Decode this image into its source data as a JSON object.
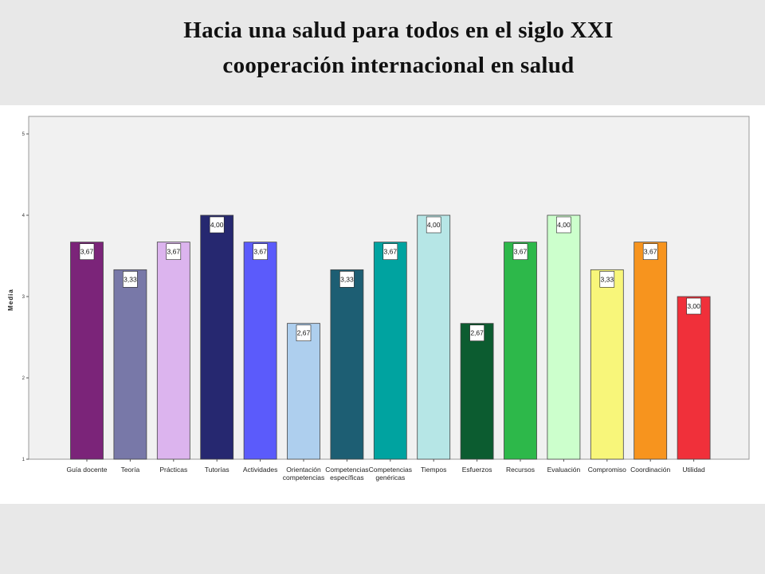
{
  "header": {
    "title_line1": "Hacia una salud para todos en el siglo XXI",
    "title_line2": "cooperación internacional en salud"
  },
  "chart_data": {
    "type": "bar",
    "ylabel": "Media",
    "ylim": [
      1,
      5
    ],
    "yticks": [
      "1",
      "2",
      "3",
      "4",
      "5"
    ],
    "categories": [
      "Guía docente",
      "Teoría",
      "Prácticas",
      "Tutorías",
      "Actividades",
      "Orientación competencias",
      "Competencias específicas",
      "Competencias genéricas",
      "Tiempos",
      "Esfuerzos",
      "Recursos",
      "Evaluación",
      "Compromiso",
      "Coordinación",
      "Utilidad"
    ],
    "category_lines": [
      [
        "Guía docente"
      ],
      [
        "Teoría"
      ],
      [
        "Prácticas"
      ],
      [
        "Tutorías"
      ],
      [
        "Actividades"
      ],
      [
        "Orientación",
        "competencias"
      ],
      [
        "Competencias",
        "específicas"
      ],
      [
        "Competencias",
        "genéricas"
      ],
      [
        "Tiempos"
      ],
      [
        "Esfuerzos"
      ],
      [
        "Recursos"
      ],
      [
        "Evaluación"
      ],
      [
        "Compromiso"
      ],
      [
        "Coordinación"
      ],
      [
        "Utilidad"
      ]
    ],
    "values": [
      3.67,
      3.33,
      3.67,
      4.0,
      3.67,
      2.67,
      3.33,
      3.67,
      4.0,
      2.67,
      3.67,
      4.0,
      3.33,
      3.67,
      3.0
    ],
    "data_labels": [
      "3,67",
      "3,33",
      "3,67",
      "4,00",
      "3,67",
      "2,67",
      "3,33",
      "3,67",
      "4,00",
      "2,67",
      "3,67",
      "4,00",
      "3,33",
      "3,67",
      "3,00"
    ],
    "colors": [
      "#7b2479",
      "#7878a8",
      "#dcb4ee",
      "#262870",
      "#5b5bfb",
      "#aecfee",
      "#1d5e73",
      "#00a3a0",
      "#b6e6e6",
      "#0c5c30",
      "#2db84a",
      "#ccffcc",
      "#f8f67a",
      "#f7941e",
      "#f0303a"
    ],
    "grid": false,
    "legend": "none"
  }
}
